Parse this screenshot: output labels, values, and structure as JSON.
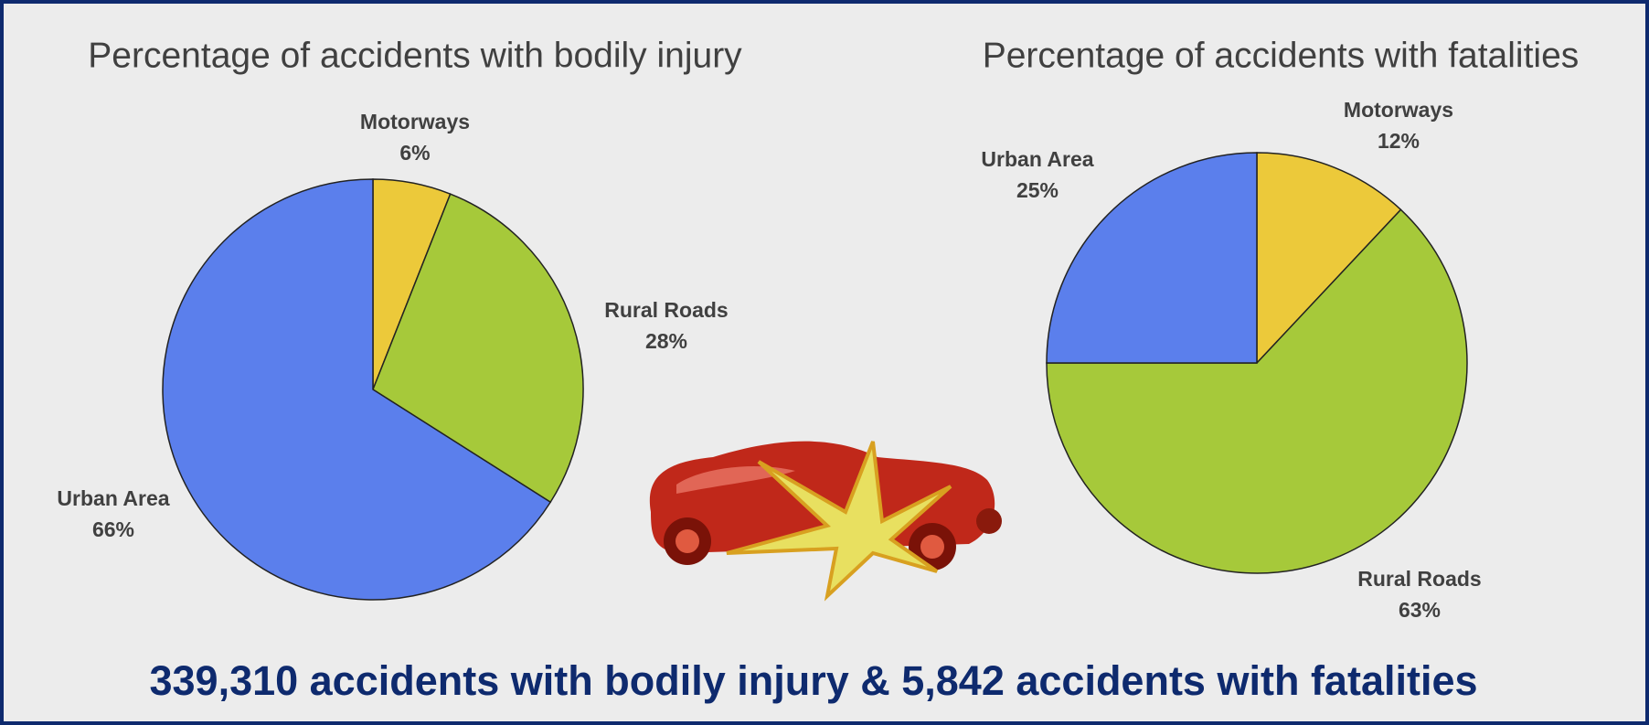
{
  "chart_data": [
    {
      "type": "pie",
      "title": "Percentage of accidents with bodily injury",
      "categories": [
        "Motorways",
        "Rural Roads",
        "Urban Area"
      ],
      "values": [
        6,
        28,
        66
      ],
      "value_labels": [
        "6%",
        "28%",
        "66%"
      ],
      "colors": [
        "#ecc93a",
        "#a6c93a",
        "#5b7fec"
      ]
    },
    {
      "type": "pie",
      "title": "Percentage of accidents with fatalities",
      "categories": [
        "Motorways",
        "Rural Roads",
        "Urban Area"
      ],
      "values": [
        12,
        63,
        25
      ],
      "value_labels": [
        "12%",
        "63%",
        "25%"
      ],
      "colors": [
        "#ecc93a",
        "#a6c93a",
        "#5b7fec"
      ]
    }
  ],
  "footer": "339,310 accidents with bodily injury & 5,842 accidents with fatalities"
}
